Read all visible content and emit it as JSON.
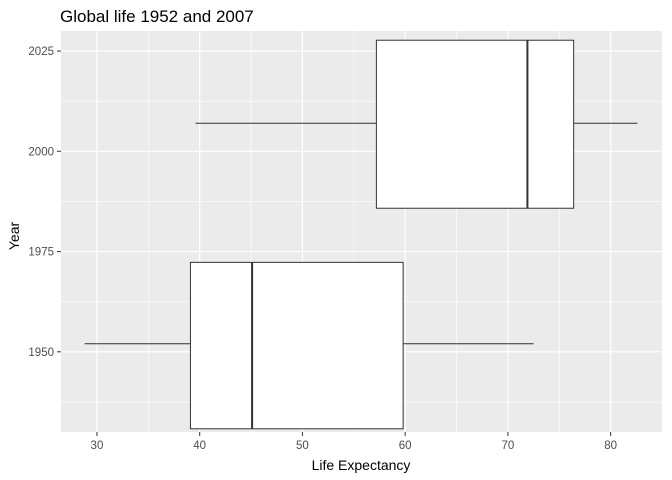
{
  "chart_data": {
    "type": "boxplot",
    "orientation": "horizontal",
    "title": "Global life 1952 and 2007",
    "xlabel": "Life Expectancy",
    "ylabel": "Year",
    "xlim": [
      26.5,
      85
    ],
    "ylim": [
      1930,
      2030
    ],
    "x_ticks": [
      30,
      40,
      50,
      60,
      70,
      80
    ],
    "y_ticks": [
      1950,
      1975,
      2000,
      2025
    ],
    "grid": true,
    "background": "#ebebeb",
    "grid_color": "#ffffff",
    "box_fill": "#ffffff",
    "line_color": "#333333",
    "boxes": [
      {
        "year": 1952,
        "ymin": 1930.8,
        "ymax": 1972.3,
        "whisker_low": 28.8,
        "q1": 39.1,
        "median": 45.1,
        "q3": 59.8,
        "whisker_high": 72.5
      },
      {
        "year": 2007,
        "ymin": 1985.8,
        "ymax": 2027.7,
        "whisker_low": 39.6,
        "q1": 57.2,
        "median": 71.9,
        "q3": 76.4,
        "whisker_high": 82.6
      }
    ]
  }
}
